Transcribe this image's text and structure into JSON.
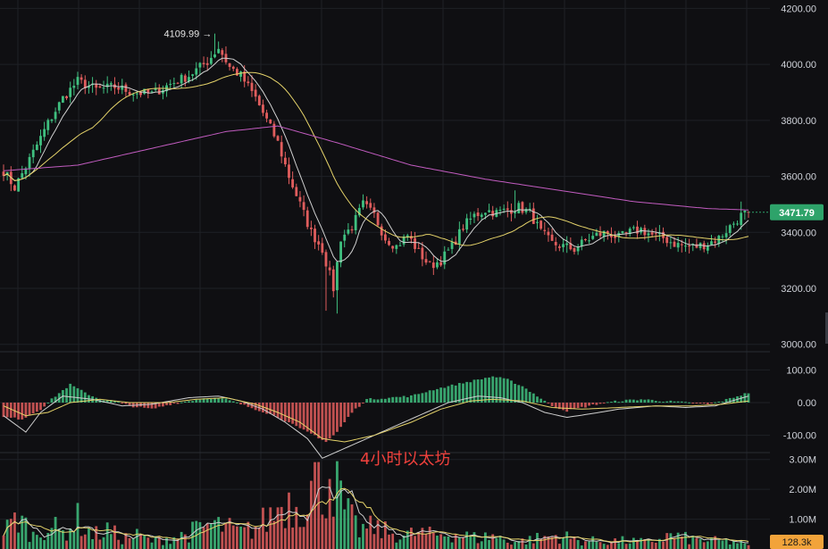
{
  "chart_data": {
    "type": "candlestick",
    "caption": "4小时以太坊",
    "colors": {
      "background": "#0f0f12",
      "grid": "#1f2126",
      "up": "#3fbf7f",
      "down": "#e05d5d",
      "ma_fast": "#d0d0d0",
      "ma_mid": "#e5d36a",
      "ma_slow": "#c25cc0",
      "price_tag": "#2ea36a",
      "volume_tag": "#f2a33a",
      "caption": "#f0413c"
    },
    "price_panel": {
      "ylim": [
        2980,
        4230
      ],
      "ticks": [
        "4200.00",
        "4000.00",
        "3800.00",
        "3600.00",
        "3400.00",
        "3200.00",
        "3000.00"
      ],
      "tick_values": [
        4200,
        4000,
        3800,
        3600,
        3400,
        3200,
        3000
      ],
      "high_marker": "4109.99",
      "high_marker_value": 4109.99,
      "last_price": "3471.79",
      "last_price_value": 3471.79,
      "close_anchors": [
        [
          0,
          3620
        ],
        [
          3,
          3560
        ],
        [
          7,
          3660
        ],
        [
          12,
          3790
        ],
        [
          16,
          3880
        ],
        [
          20,
          3940
        ],
        [
          25,
          3910
        ],
        [
          30,
          3920
        ],
        [
          35,
          3900
        ],
        [
          40,
          3895
        ],
        [
          45,
          3930
        ],
        [
          50,
          3960
        ],
        [
          55,
          4010
        ],
        [
          58,
          4060
        ],
        [
          61,
          3990
        ],
        [
          64,
          3960
        ],
        [
          68,
          3880
        ],
        [
          71,
          3800
        ],
        [
          74,
          3720
        ],
        [
          77,
          3600
        ],
        [
          80,
          3500
        ],
        [
          83,
          3400
        ],
        [
          86,
          3340
        ],
        [
          89,
          3200
        ],
        [
          91,
          3380
        ],
        [
          94,
          3420
        ],
        [
          97,
          3500
        ],
        [
          100,
          3460
        ],
        [
          103,
          3380
        ],
        [
          106,
          3350
        ],
        [
          109,
          3390
        ],
        [
          112,
          3330
        ],
        [
          115,
          3280
        ],
        [
          118,
          3300
        ],
        [
          121,
          3350
        ],
        [
          124,
          3420
        ],
        [
          127,
          3460
        ],
        [
          130,
          3480
        ],
        [
          133,
          3470
        ],
        [
          136,
          3480
        ],
        [
          139,
          3490
        ],
        [
          142,
          3470
        ],
        [
          145,
          3400
        ],
        [
          148,
          3360
        ],
        [
          151,
          3350
        ],
        [
          154,
          3340
        ],
        [
          157,
          3370
        ],
        [
          160,
          3390
        ],
        [
          163,
          3400
        ],
        [
          166,
          3380
        ],
        [
          169,
          3400
        ],
        [
          172,
          3410
        ],
        [
          175,
          3390
        ],
        [
          178,
          3380
        ],
        [
          181,
          3360
        ],
        [
          184,
          3350
        ],
        [
          187,
          3350
        ],
        [
          190,
          3360
        ],
        [
          193,
          3380
        ],
        [
          196,
          3420
        ],
        [
          199,
          3460
        ],
        [
          201,
          3471.79
        ]
      ],
      "spikes": [
        {
          "i": 57,
          "high": 4109.99
        },
        {
          "i": 87,
          "low": 3120
        },
        {
          "i": 90,
          "low": 3110
        },
        {
          "i": 138,
          "high": 3550
        },
        {
          "i": 199,
          "high": 3510
        }
      ],
      "ma_slow_anchors": [
        [
          0,
          3620
        ],
        [
          20,
          3640
        ],
        [
          40,
          3700
        ],
        [
          60,
          3760
        ],
        [
          74,
          3780
        ],
        [
          90,
          3720
        ],
        [
          110,
          3640
        ],
        [
          130,
          3590
        ],
        [
          150,
          3550
        ],
        [
          170,
          3510
        ],
        [
          190,
          3485
        ],
        [
          201,
          3480
        ]
      ]
    },
    "macd_panel": {
      "ylim": [
        -150,
        150
      ],
      "ticks": [
        "100.00",
        "0.00",
        "-100.00"
      ],
      "tick_values": [
        100,
        0,
        -100
      ],
      "hist_anchors": [
        [
          0,
          -45
        ],
        [
          5,
          -50
        ],
        [
          10,
          -20
        ],
        [
          14,
          20
        ],
        [
          18,
          55
        ],
        [
          22,
          30
        ],
        [
          26,
          10
        ],
        [
          30,
          5
        ],
        [
          34,
          -10
        ],
        [
          40,
          -20
        ],
        [
          45,
          -5
        ],
        [
          50,
          5
        ],
        [
          55,
          15
        ],
        [
          60,
          10
        ],
        [
          64,
          -5
        ],
        [
          68,
          -20
        ],
        [
          72,
          -35
        ],
        [
          76,
          -55
        ],
        [
          80,
          -80
        ],
        [
          84,
          -100
        ],
        [
          87,
          -120
        ],
        [
          90,
          -90
        ],
        [
          94,
          -30
        ],
        [
          98,
          10
        ],
        [
          104,
          15
        ],
        [
          110,
          20
        ],
        [
          116,
          40
        ],
        [
          122,
          55
        ],
        [
          128,
          70
        ],
        [
          132,
          80
        ],
        [
          136,
          70
        ],
        [
          140,
          50
        ],
        [
          144,
          20
        ],
        [
          148,
          -10
        ],
        [
          152,
          -25
        ],
        [
          156,
          -15
        ],
        [
          160,
          -5
        ],
        [
          166,
          5
        ],
        [
          172,
          10
        ],
        [
          178,
          5
        ],
        [
          184,
          0
        ],
        [
          190,
          -5
        ],
        [
          194,
          5
        ],
        [
          198,
          20
        ],
        [
          201,
          30
        ]
      ],
      "dif_anchors": [
        [
          0,
          -40
        ],
        [
          6,
          -90
        ],
        [
          10,
          -30
        ],
        [
          16,
          20
        ],
        [
          24,
          10
        ],
        [
          32,
          -10
        ],
        [
          40,
          -5
        ],
        [
          50,
          15
        ],
        [
          58,
          20
        ],
        [
          64,
          5
        ],
        [
          70,
          -20
        ],
        [
          76,
          -60
        ],
        [
          82,
          -110
        ],
        [
          86,
          -170
        ],
        [
          90,
          -150
        ],
        [
          96,
          -120
        ],
        [
          104,
          -80
        ],
        [
          112,
          -40
        ],
        [
          120,
          0
        ],
        [
          128,
          20
        ],
        [
          134,
          15
        ],
        [
          140,
          0
        ],
        [
          146,
          -30
        ],
        [
          152,
          -45
        ],
        [
          158,
          -35
        ],
        [
          166,
          -20
        ],
        [
          176,
          -10
        ],
        [
          184,
          -15
        ],
        [
          192,
          -10
        ],
        [
          201,
          20
        ]
      ],
      "dea_anchors": [
        [
          0,
          -10
        ],
        [
          6,
          -40
        ],
        [
          12,
          -30
        ],
        [
          18,
          0
        ],
        [
          26,
          10
        ],
        [
          34,
          0
        ],
        [
          44,
          0
        ],
        [
          52,
          10
        ],
        [
          60,
          15
        ],
        [
          68,
          -5
        ],
        [
          74,
          -30
        ],
        [
          80,
          -60
        ],
        [
          86,
          -110
        ],
        [
          92,
          -120
        ],
        [
          100,
          -100
        ],
        [
          110,
          -60
        ],
        [
          118,
          -20
        ],
        [
          126,
          5
        ],
        [
          132,
          10
        ],
        [
          140,
          5
        ],
        [
          148,
          -15
        ],
        [
          156,
          -20
        ],
        [
          166,
          -15
        ],
        [
          176,
          -10
        ],
        [
          186,
          -10
        ],
        [
          194,
          -5
        ],
        [
          201,
          5
        ]
      ]
    },
    "volume_panel": {
      "ylim": [
        0,
        3200000
      ],
      "ticks": [
        "3.00M",
        "2.00M",
        "1.00M"
      ],
      "tick_values": [
        3000000,
        2000000,
        1000000
      ],
      "last_volume": "128.3k",
      "last_volume_value": 128300,
      "vol_anchors": [
        [
          0,
          0.6
        ],
        [
          4,
          1.2
        ],
        [
          8,
          0.5
        ],
        [
          12,
          0.9
        ],
        [
          16,
          0.6
        ],
        [
          20,
          1.1
        ],
        [
          24,
          0.5
        ],
        [
          28,
          0.7
        ],
        [
          32,
          0.4
        ],
        [
          36,
          0.5
        ],
        [
          40,
          0.3
        ],
        [
          44,
          0.4
        ],
        [
          48,
          0.5
        ],
        [
          52,
          0.7
        ],
        [
          56,
          0.9
        ],
        [
          60,
          0.8
        ],
        [
          64,
          0.6
        ],
        [
          68,
          0.8
        ],
        [
          72,
          1.2
        ],
        [
          76,
          1.8
        ],
        [
          80,
          1.6
        ],
        [
          84,
          2.6
        ],
        [
          86,
          2.0
        ],
        [
          88,
          3.0
        ],
        [
          90,
          2.2
        ],
        [
          92,
          1.4
        ],
        [
          96,
          0.7
        ],
        [
          100,
          0.8
        ],
        [
          104,
          0.6
        ],
        [
          108,
          0.5
        ],
        [
          112,
          0.6
        ],
        [
          116,
          0.5
        ],
        [
          120,
          0.6
        ],
        [
          124,
          0.5
        ],
        [
          128,
          0.4
        ],
        [
          132,
          0.5
        ],
        [
          136,
          0.3
        ],
        [
          140,
          0.3
        ],
        [
          144,
          0.4
        ],
        [
          150,
          0.5
        ],
        [
          156,
          0.3
        ],
        [
          162,
          0.3
        ],
        [
          168,
          0.3
        ],
        [
          174,
          0.25
        ],
        [
          180,
          0.5
        ],
        [
          186,
          0.35
        ],
        [
          192,
          0.3
        ],
        [
          198,
          0.25
        ],
        [
          201,
          0.13
        ]
      ]
    }
  }
}
